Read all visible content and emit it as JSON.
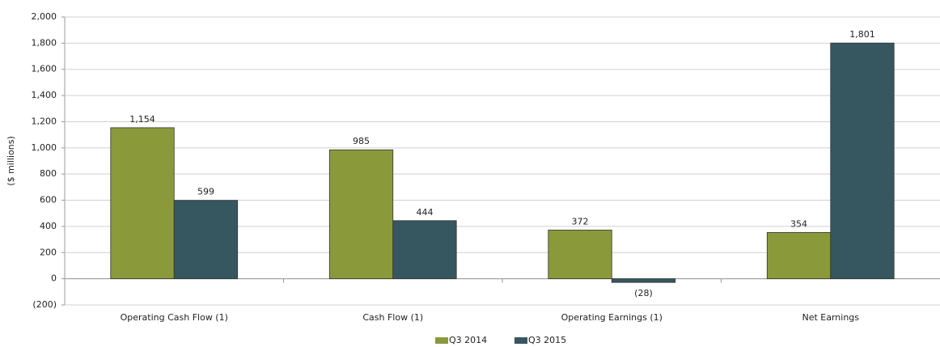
{
  "chart_data": {
    "type": "bar",
    "y_axis_label": "($ millions)",
    "categories": [
      "Operating Cash Flow (1)",
      "Cash Flow (1)",
      "Operating Earnings (1)",
      "Net Earnings"
    ],
    "series": [
      {
        "name": "Q3 2014",
        "color": "#8a9a3a",
        "values": [
          1154,
          985,
          372,
          354
        ],
        "value_labels": [
          "1,154",
          "985",
          "372",
          "354"
        ]
      },
      {
        "name": "Q3 2015",
        "color": "#36575f",
        "values": [
          599,
          444,
          -28,
          1801
        ],
        "value_labels": [
          "599",
          "444",
          "(28)",
          "1,801"
        ]
      }
    ],
    "ylim": [
      -200,
      2000
    ],
    "yticks": [
      {
        "value": -200,
        "label": "(200)"
      },
      0,
      200,
      400,
      600,
      800,
      {
        "value": 1000,
        "label": "1,000"
      },
      {
        "value": 1200,
        "label": "1,200"
      },
      {
        "value": 1400,
        "label": "1,400"
      },
      {
        "value": 1600,
        "label": "1,600"
      },
      {
        "value": 1800,
        "label": "1,800"
      },
      {
        "value": 2000,
        "label": "2,000"
      }
    ],
    "grid": true,
    "legend": "bottom"
  }
}
